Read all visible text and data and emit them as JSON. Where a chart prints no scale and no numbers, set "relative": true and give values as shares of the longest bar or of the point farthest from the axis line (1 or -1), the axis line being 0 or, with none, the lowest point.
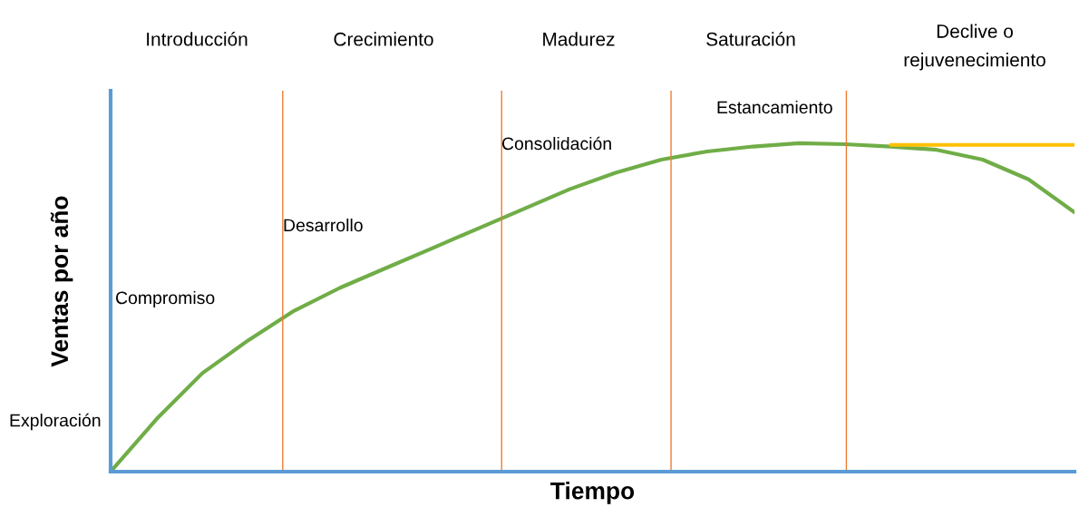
{
  "chart_data": {
    "type": "line",
    "relative": true,
    "xlabel": "Tiempo",
    "ylabel": "Ventas por año",
    "categories": [
      null,
      null,
      null,
      null,
      null,
      null,
      null,
      null,
      null,
      null,
      null,
      null,
      null,
      null,
      null,
      null,
      null,
      null,
      null,
      null,
      null,
      null
    ],
    "series": [
      {
        "color": "#70ad47",
        "values": [
          0,
          0.16,
          0.3,
          0.4,
          0.49,
          0.56,
          0.62,
          0.68,
          0.74,
          0.8,
          0.86,
          0.91,
          0.95,
          0.975,
          0.99,
          1.0,
          0.997,
          0.99,
          0.98,
          0.95,
          0.89,
          0.79
        ]
      },
      {
        "color": "#ffc000",
        "values": [
          null,
          null,
          null,
          null,
          null,
          null,
          null,
          null,
          null,
          null,
          null,
          null,
          null,
          null,
          null,
          null,
          null,
          0.995,
          0.995,
          0.995,
          0.995,
          0.995
        ]
      }
    ],
    "annotations": [
      "Introducción",
      "Crecimiento",
      "Madurez",
      "Saturación",
      "Declive o\nrejuvenecimiento",
      "Exploración",
      "Compromiso",
      "Desarrollo",
      "Consolidación",
      "Estancamiento"
    ]
  }
}
